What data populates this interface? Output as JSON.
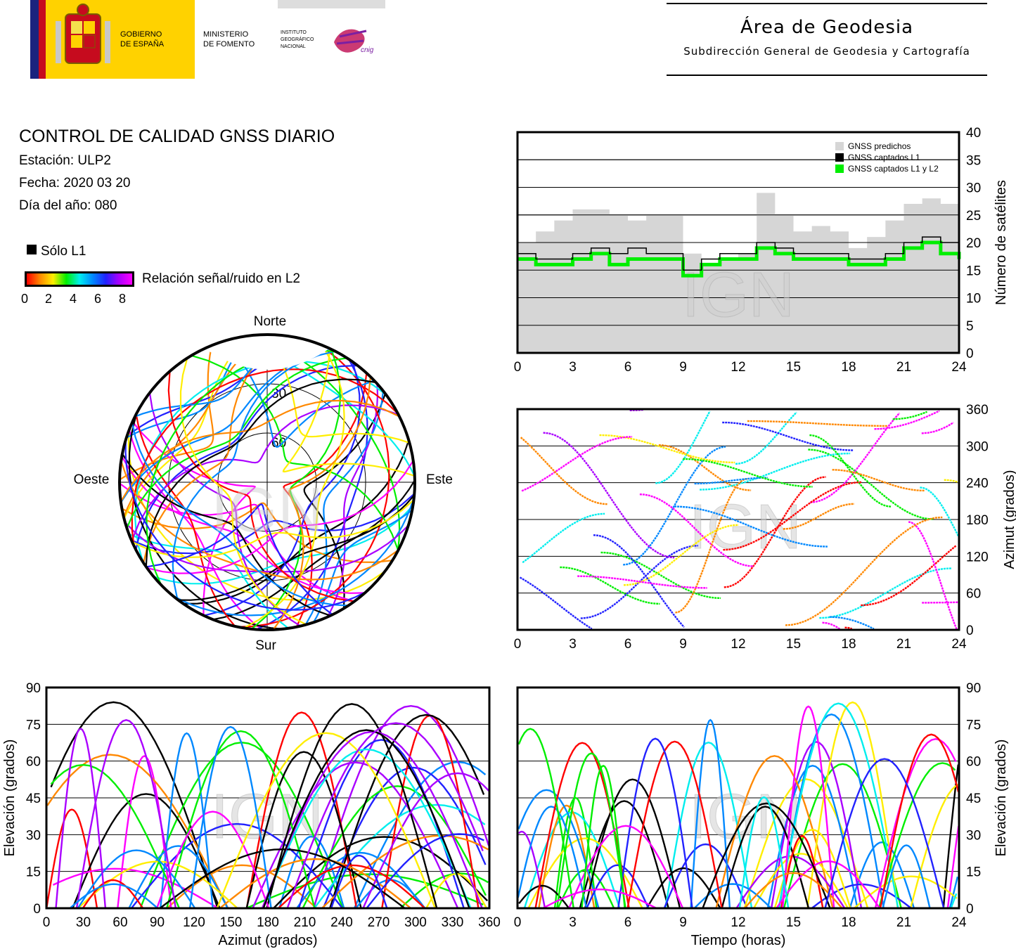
{
  "header": {
    "gov_label_1": "GOBIERNO",
    "gov_label_2": "DE ESPAÑA",
    "ministry_label_1": "MINISTERIO",
    "ministry_label_2": "DE FOMENTO",
    "ign_label_1": "INSTITUTO",
    "ign_label_2": "GEOGRÁFICO",
    "ign_label_3": "NACIONAL",
    "cnig_label": "cnig",
    "area_title": "Área de Geodesia",
    "area_subtitle": "Subdirección General de Geodesia y Cartografía"
  },
  "report": {
    "title": "CONTROL DE CALIDAD GNSS DIARIO",
    "station": "Estación: ULP2",
    "date": "Fecha: 2020 03 20",
    "day_of_year": "Día del año: 080"
  },
  "legend": {
    "l1_only": "Sólo L1",
    "snr_label": "Relación señal/ruido en L2",
    "snr_ticks": [
      "0",
      "2",
      "4",
      "6",
      "8"
    ]
  },
  "watermark": "IGN",
  "colors": {
    "predicted": "#d6d6d6",
    "l1": "#000000",
    "l1l2": "#00ee00",
    "snr_scale": [
      "#ff0000",
      "#ff8800",
      "#ffee00",
      "#00ee00",
      "#00eeee",
      "#0088ff",
      "#2222ff",
      "#aa00ff",
      "#ff00ff"
    ]
  },
  "chart_data": [
    {
      "type": "area",
      "id": "satellite-count",
      "ylabel": "Número de satélites",
      "xlim": [
        0,
        24
      ],
      "ylim": [
        0,
        40
      ],
      "xticks": [
        "0",
        "3",
        "6",
        "9",
        "12",
        "15",
        "18",
        "21",
        "24"
      ],
      "yticks": [
        "0",
        "5",
        "10",
        "15",
        "20",
        "25",
        "30",
        "35",
        "40"
      ],
      "legend_position": "top-right",
      "series": [
        {
          "name": "GNSS predichos",
          "x": [
            0,
            1,
            2,
            3,
            4,
            5,
            6,
            7,
            8,
            9,
            10,
            11,
            12,
            13,
            14,
            15,
            16,
            17,
            18,
            19,
            20,
            21,
            22,
            23,
            24
          ],
          "values": [
            20,
            22,
            24,
            26,
            26,
            25,
            24,
            25,
            25,
            18,
            16,
            17,
            18,
            29,
            25,
            22,
            23,
            22,
            19,
            21,
            24,
            27,
            28,
            27,
            19
          ]
        },
        {
          "name": "GNSS captados L1",
          "x": [
            0,
            1,
            2,
            3,
            4,
            5,
            6,
            7,
            8,
            9,
            10,
            11,
            12,
            13,
            14,
            15,
            16,
            17,
            18,
            19,
            20,
            21,
            22,
            23,
            24
          ],
          "values": [
            18,
            17,
            17,
            18,
            19,
            18,
            19,
            18,
            18,
            15,
            17,
            18,
            18,
            20,
            19,
            18,
            18,
            18,
            17,
            17,
            18,
            20,
            21,
            20,
            19
          ]
        },
        {
          "name": "GNSS captados L1 y L2",
          "x": [
            0,
            1,
            2,
            3,
            4,
            5,
            6,
            7,
            8,
            9,
            10,
            11,
            12,
            13,
            14,
            15,
            16,
            17,
            18,
            19,
            20,
            21,
            22,
            23,
            24
          ],
          "values": [
            17,
            16,
            16,
            17,
            18,
            16,
            17,
            17,
            17,
            14,
            16,
            17,
            17,
            19,
            18,
            17,
            17,
            17,
            16,
            16,
            17,
            19,
            20,
            18,
            17
          ]
        }
      ]
    },
    {
      "type": "scatter",
      "id": "sky-plot",
      "labels": {
        "north": "Norte",
        "south": "Sur",
        "east": "Este",
        "west": "Oeste"
      },
      "rings": [
        "30",
        "60"
      ]
    },
    {
      "type": "scatter",
      "id": "azimuth-time",
      "ylabel": "Azimut (grados)",
      "xlim": [
        0,
        24
      ],
      "ylim": [
        0,
        360
      ],
      "xticks": [
        "0",
        "3",
        "6",
        "9",
        "12",
        "15",
        "18",
        "21",
        "24"
      ],
      "yticks": [
        "0",
        "60",
        "120",
        "180",
        "240",
        "300",
        "360"
      ]
    },
    {
      "type": "scatter",
      "id": "elevation-azimuth",
      "xlabel": "Azimut (grados)",
      "ylabel": "Elevación (grados)",
      "xlim": [
        0,
        360
      ],
      "ylim": [
        0,
        90
      ],
      "xticks": [
        "0",
        "30",
        "60",
        "90",
        "120",
        "150",
        "180",
        "210",
        "240",
        "270",
        "300",
        "330",
        "360"
      ],
      "yticks": [
        "0",
        "15",
        "30",
        "45",
        "60",
        "75",
        "90"
      ]
    },
    {
      "type": "scatter",
      "id": "elevation-time",
      "xlabel": "Tiempo (horas)",
      "ylabel": "Elevación (grados)",
      "xlim": [
        0,
        24
      ],
      "ylim": [
        0,
        90
      ],
      "xticks": [
        "0",
        "3",
        "6",
        "9",
        "12",
        "15",
        "18",
        "21",
        "24"
      ],
      "yticks": [
        "0",
        "15",
        "30",
        "45",
        "60",
        "75",
        "90"
      ]
    }
  ]
}
